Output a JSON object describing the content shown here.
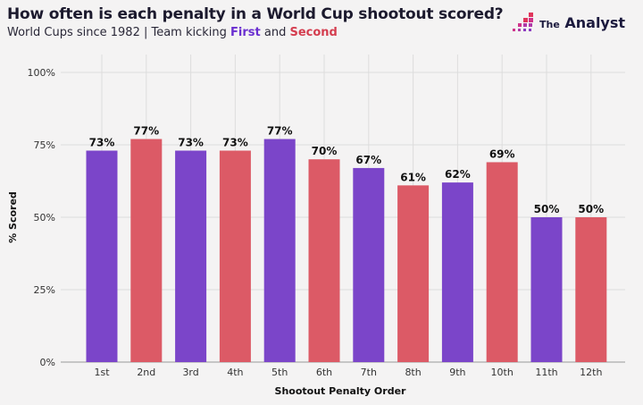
{
  "header": {
    "title": "How often is each penalty in a World Cup shootout scored?",
    "subtitle_prefix": "World Cups since 1982 | Team kicking ",
    "first_label": "First",
    "and_label": " and ",
    "second_label": "Second",
    "logo_small": "The",
    "logo_big": "Analyst"
  },
  "chart_data": {
    "type": "bar",
    "title": "How often is each penalty in a World Cup shootout scored?",
    "xlabel": "Shootout Penalty Order",
    "ylabel": "% Scored",
    "ylim": [
      0,
      100
    ],
    "yticks": [
      "0%",
      "25%",
      "50%",
      "75%",
      "100%"
    ],
    "ytick_values": [
      0,
      25,
      50,
      75,
      100
    ],
    "grid": true,
    "categories": [
      "1st",
      "2nd",
      "3rd",
      "4th",
      "5th",
      "6th",
      "7th",
      "8th",
      "9th",
      "10th",
      "11th",
      "12th"
    ],
    "values": [
      73,
      77,
      73,
      73,
      77,
      70,
      67,
      61,
      62,
      69,
      50,
      50
    ],
    "data_labels": [
      "73%",
      "77%",
      "73%",
      "73%",
      "77%",
      "70%",
      "67%",
      "61%",
      "62%",
      "69%",
      "50%",
      "50%"
    ],
    "bar_team": [
      "First",
      "Second",
      "First",
      "Second",
      "First",
      "Second",
      "First",
      "Second",
      "First",
      "Second",
      "First",
      "Second"
    ],
    "colors": {
      "First": "#7b45c9",
      "Second": "#dc5a66"
    }
  }
}
